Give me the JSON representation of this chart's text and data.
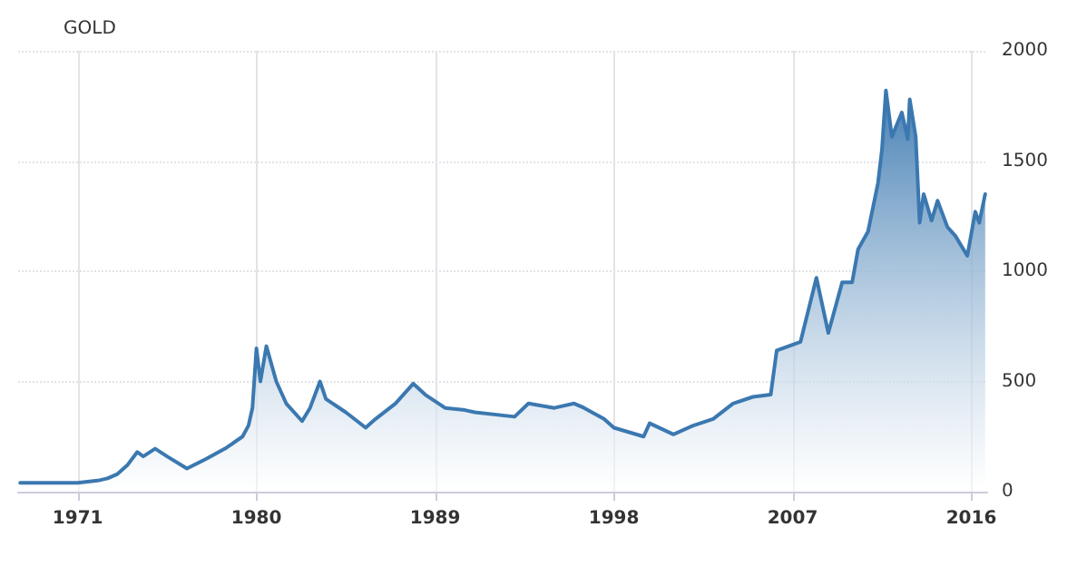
{
  "chart_data": {
    "type": "area",
    "title": "GOLD",
    "grid": true,
    "marker": "none",
    "line_style": "solid",
    "xlim": [
      1968,
      2016.8
    ],
    "xticks": [
      1971,
      1980,
      1989,
      1998,
      2007,
      2016
    ],
    "ylim": [
      0,
      2000
    ],
    "yticks": [
      0,
      500,
      1000,
      1500,
      2000
    ],
    "series": [
      {
        "color": "#3b78b0",
        "x": [
          1968.1,
          1969,
          1970,
          1971,
          1972,
          1972.5,
          1973,
          1973.5,
          1974,
          1974.3,
          1974.9,
          1975.5,
          1976.5,
          1977.5,
          1978.5,
          1979.3,
          1979.6,
          1979.8,
          1980,
          1980.2,
          1980.5,
          1981,
          1981.5,
          1982.3,
          1982.7,
          1983.2,
          1983.5,
          1984.5,
          1985.5,
          1986,
          1987,
          1987.9,
          1988.5,
          1989.5,
          1990.5,
          1991,
          1993,
          1993.7,
          1995,
          1996,
          1996.5,
          1997.5,
          1998,
          1999.5,
          1999.8,
          2001,
          2002,
          2003,
          2004,
          2005,
          2005.9,
          2006.2,
          2007.4,
          2008.2,
          2008.8,
          2009.5,
          2010,
          2010.3,
          2010.8,
          2011.3,
          2011.5,
          2011.7,
          2012,
          2012.5,
          2012.8,
          2012.9,
          2013.2,
          2013.4,
          2013.6,
          2014,
          2014.3,
          2014.8,
          2015.2,
          2015.8,
          2016.2,
          2016.4,
          2016.7
        ],
        "values": [
          40,
          40,
          40,
          40,
          50,
          60,
          80,
          120,
          180,
          160,
          195,
          160,
          105,
          150,
          200,
          250,
          300,
          380,
          650,
          500,
          660,
          500,
          400,
          320,
          380,
          500,
          420,
          360,
          290,
          330,
          400,
          490,
          440,
          380,
          370,
          360,
          340,
          400,
          380,
          400,
          380,
          330,
          290,
          250,
          310,
          260,
          300,
          330,
          400,
          430,
          440,
          640,
          680,
          970,
          720,
          950,
          950,
          1100,
          1180,
          1400,
          1550,
          1820,
          1610,
          1720,
          1600,
          1780,
          1610,
          1220,
          1350,
          1230,
          1320,
          1200,
          1160,
          1070,
          1270,
          1220,
          1350
        ]
      }
    ]
  }
}
